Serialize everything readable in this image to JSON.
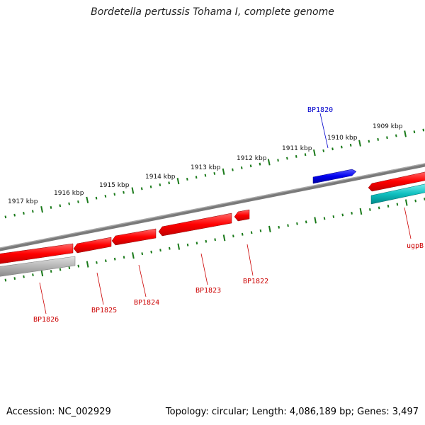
{
  "title": "Bordetella pertussis Tohama I, complete genome",
  "footer": {
    "accession": "Accession: NC_002929",
    "topology": "Topology: circular; Length: 4,086,189 bp; Genes: 3,497"
  },
  "colors": {
    "forward_gene": "#ff1a1a",
    "reverse_gene": "#ff1a1a",
    "highlight_gene": "#1010e0",
    "other_gene_cyan": "#20c8c8",
    "other_gene_gray": "#b8b8b8",
    "backbone": "#7a7a7a",
    "ticks": "#1a7a1a",
    "label_red": "#cc0000",
    "label_blue": "#0000cc"
  },
  "scale_labels": [
    "1917 kbp",
    "1916 kbp",
    "1915 kbp",
    "1914 kbp",
    "1913 kbp",
    "1912 kbp",
    "1911 kbp",
    "1910 kbp",
    "1909 kbp"
  ],
  "genes": [
    {
      "name": "BP1820",
      "strand": "forward",
      "color": "blue"
    },
    {
      "name": "BP1822",
      "strand": "reverse",
      "color": "red"
    },
    {
      "name": "BP1823",
      "strand": "reverse",
      "color": "red"
    },
    {
      "name": "BP1824",
      "strand": "reverse",
      "color": "red"
    },
    {
      "name": "BP1825",
      "strand": "reverse",
      "color": "red"
    },
    {
      "name": "BP1826",
      "strand": "reverse",
      "color": "gray"
    },
    {
      "name": "ugpB",
      "strand": "reverse",
      "color": "cyan"
    }
  ]
}
